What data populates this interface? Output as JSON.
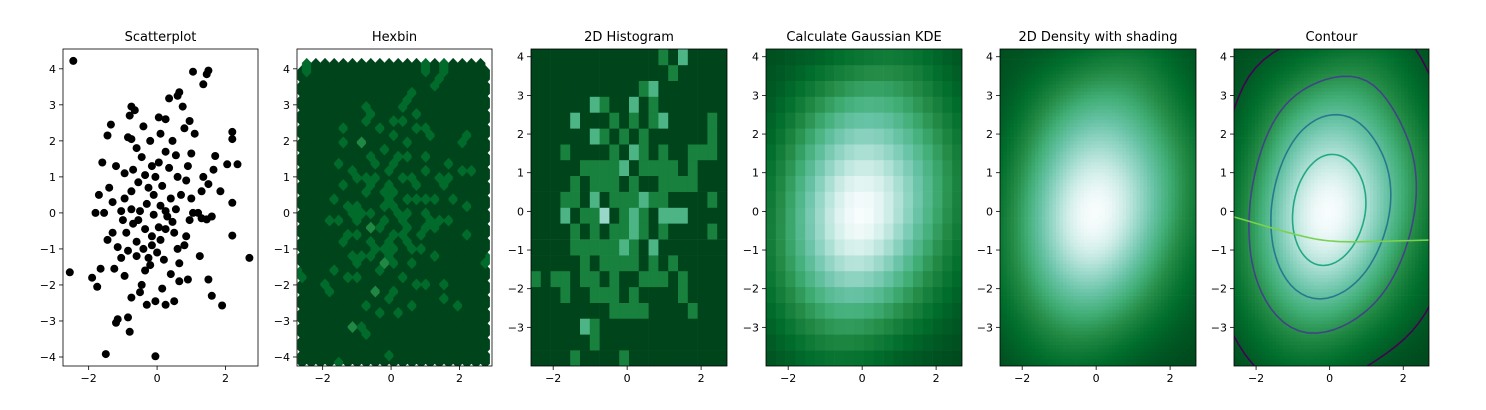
{
  "chart_data": [
    {
      "type": "scatter",
      "title": "Scatterplot",
      "xlim": [
        -2.75,
        2.95
      ],
      "ylim": [
        -4.25,
        4.55
      ],
      "xticks": [
        {
          "v": -2,
          "label": "−2"
        },
        {
          "v": 0,
          "label": "0"
        },
        {
          "v": 2,
          "label": "2"
        }
      ],
      "yticks": [
        {
          "v": -4,
          "label": "−4"
        },
        {
          "v": -3,
          "label": "−3"
        },
        {
          "v": -2,
          "label": "−2"
        },
        {
          "v": -1,
          "label": "−1"
        },
        {
          "v": 0,
          "label": "0"
        },
        {
          "v": 1,
          "label": "1"
        },
        {
          "v": 2,
          "label": "2"
        },
        {
          "v": 3,
          "label": "3"
        },
        {
          "v": 4,
          "label": "4"
        }
      ],
      "marker_color": "#000000",
      "points": [
        [
          -2.45,
          4.22
        ],
        [
          -2.55,
          -1.65
        ],
        [
          -1.9,
          -1.8
        ],
        [
          -1.5,
          -3.92
        ],
        [
          -0.05,
          -3.98
        ],
        [
          2.7,
          -1.25
        ],
        [
          2.2,
          2.25
        ],
        [
          2.2,
          2.05
        ],
        [
          2.35,
          1.35
        ],
        [
          2.2,
          0.28
        ],
        [
          2.2,
          -0.63
        ],
        [
          1.9,
          -2.57
        ],
        [
          1.6,
          -2.3
        ],
        [
          1.5,
          -1.85
        ],
        [
          1.85,
          0.6
        ],
        [
          1.5,
          3.95
        ],
        [
          1.45,
          3.85
        ],
        [
          1.35,
          3.57
        ],
        [
          1.05,
          3.92
        ],
        [
          0.65,
          3.35
        ],
        [
          0.6,
          3.25
        ],
        [
          0.35,
          3.18
        ],
        [
          -0.75,
          2.95
        ],
        [
          -0.65,
          2.85
        ],
        [
          -0.8,
          2.7
        ],
        [
          -1.35,
          2.45
        ],
        [
          -1.45,
          2.15
        ],
        [
          -0.85,
          2.1
        ],
        [
          -0.75,
          2.05
        ],
        [
          0.05,
          2.65
        ],
        [
          0.25,
          2.6
        ],
        [
          1.7,
          1.58
        ],
        [
          1.65,
          1.2
        ],
        [
          2.05,
          1.35
        ],
        [
          1.5,
          0.8
        ],
        [
          1.3,
          0.6
        ],
        [
          1.0,
          0.4
        ],
        [
          1.2,
          0.0
        ],
        [
          1.45,
          -0.18
        ],
        [
          1.3,
          -0.15
        ],
        [
          0.85,
          -0.65
        ],
        [
          0.8,
          -0.9
        ],
        [
          0.6,
          -1.0
        ],
        [
          0.9,
          -1.85
        ],
        [
          0.65,
          -1.9
        ],
        [
          0.5,
          -2.45
        ],
        [
          0.25,
          -2.55
        ],
        [
          -0.05,
          -2.45
        ],
        [
          -0.3,
          -2.55
        ],
        [
          -0.5,
          -2.2
        ],
        [
          -0.75,
          -2.35
        ],
        [
          -0.85,
          -2.9
        ],
        [
          -1.15,
          -2.95
        ],
        [
          -1.2,
          -3.05
        ],
        [
          -0.8,
          -3.3
        ],
        [
          -1.75,
          -2.05
        ],
        [
          -1.65,
          -1.55
        ],
        [
          -1.8,
          0.0
        ],
        [
          -1.7,
          0.5
        ],
        [
          -1.6,
          1.4
        ],
        [
          -1.4,
          0.7
        ],
        [
          -1.3,
          0.3
        ],
        [
          -1.3,
          -0.55
        ],
        [
          -1.45,
          -0.75
        ],
        [
          -1.15,
          -0.95
        ],
        [
          -1.05,
          -1.25
        ],
        [
          -1.25,
          -1.55
        ],
        [
          -0.95,
          -1.75
        ],
        [
          -0.6,
          -1.2
        ],
        [
          -0.35,
          -1.6
        ],
        [
          -0.25,
          -1.25
        ],
        [
          -0.15,
          -0.9
        ],
        [
          0.1,
          -0.75
        ],
        [
          0.25,
          -0.45
        ],
        [
          0.45,
          -0.25
        ],
        [
          0.55,
          0.1
        ],
        [
          0.7,
          0.5
        ],
        [
          0.85,
          0.9
        ],
        [
          0.9,
          1.3
        ],
        [
          1.0,
          1.65
        ],
        [
          1.1,
          2.2
        ],
        [
          0.8,
          2.35
        ],
        [
          0.45,
          2.0
        ],
        [
          0.25,
          1.7
        ],
        [
          0.05,
          1.4
        ],
        [
          -0.15,
          1.3
        ],
        [
          -0.35,
          1.05
        ],
        [
          -0.55,
          0.85
        ],
        [
          -0.75,
          0.6
        ],
        [
          -0.95,
          0.4
        ],
        [
          -0.75,
          0.1
        ],
        [
          -0.55,
          -0.2
        ],
        [
          -0.35,
          -0.45
        ],
        [
          -0.15,
          -0.65
        ],
        [
          0.05,
          -0.4
        ],
        [
          0.25,
          0.05
        ],
        [
          0.4,
          0.4
        ],
        [
          0.15,
          0.75
        ],
        [
          -0.1,
          0.5
        ],
        [
          -0.3,
          0.25
        ],
        [
          -0.5,
          0.05
        ],
        [
          -0.7,
          -0.3
        ],
        [
          -0.9,
          -0.55
        ],
        [
          -0.6,
          -0.8
        ],
        [
          -0.4,
          -1.0
        ],
        [
          -0.2,
          -1.45
        ],
        [
          0.0,
          -1.1
        ],
        [
          0.2,
          -1.3
        ],
        [
          0.4,
          -1.7
        ],
        [
          0.65,
          -1.4
        ],
        [
          0.95,
          -0.2
        ],
        [
          1.6,
          -0.1
        ],
        [
          0.6,
          1.0
        ],
        [
          0.35,
          1.25
        ],
        [
          -0.05,
          1.0
        ],
        [
          -0.45,
          1.55
        ],
        [
          -0.7,
          1.2
        ],
        [
          -0.95,
          1.1
        ],
        [
          -1.2,
          1.3
        ],
        [
          -1.05,
          0.05
        ],
        [
          0.75,
          2.95
        ],
        [
          0.1,
          2.2
        ],
        [
          -0.4,
          2.4
        ],
        [
          -0.2,
          2.0
        ],
        [
          0.55,
          1.6
        ],
        [
          1.35,
          1.0
        ],
        [
          1.05,
          0.0
        ],
        [
          0.5,
          -0.55
        ],
        [
          -0.1,
          -0.05
        ],
        [
          0.1,
          0.2
        ],
        [
          -1.0,
          -0.2
        ],
        [
          -0.85,
          -1.05
        ],
        [
          -0.45,
          -2.0
        ],
        [
          0.15,
          -2.1
        ],
        [
          1.25,
          -1.2
        ],
        [
          -0.25,
          0.7
        ],
        [
          0.3,
          -0.1
        ],
        [
          -1.55,
          0.0
        ],
        [
          0.95,
          2.55
        ],
        [
          -0.6,
          1.8
        ]
      ]
    },
    {
      "type": "heatmap",
      "subtype": "hexbin",
      "title": "Hexbin",
      "xlim": [
        -2.75,
        2.95
      ],
      "ylim": [
        -4.25,
        4.55
      ],
      "xticks": [
        {
          "v": -2,
          "label": "−2"
        },
        {
          "v": 0,
          "label": "0"
        },
        {
          "v": 2,
          "label": "2"
        }
      ],
      "yticks": [
        {
          "v": -4,
          "label": "−4"
        },
        {
          "v": -3,
          "label": "−3"
        },
        {
          "v": -2,
          "label": "−2"
        },
        {
          "v": -1,
          "label": "−1"
        },
        {
          "v": 0,
          "label": "0"
        },
        {
          "v": 1,
          "label": "1"
        },
        {
          "v": 2,
          "label": "2"
        },
        {
          "v": 3,
          "label": "3"
        },
        {
          "v": 4,
          "label": "4"
        }
      ],
      "colormap": "BuGn_r",
      "bins": 20,
      "bin_counts_max": 7
    },
    {
      "type": "heatmap",
      "subtype": "hist2d",
      "title": "2D Histogram",
      "xlim": [
        -2.6,
        2.7
      ],
      "ylim": [
        -4.0,
        4.2
      ],
      "xticks": [
        {
          "v": -2,
          "label": "−2"
        },
        {
          "v": 0,
          "label": "0"
        },
        {
          "v": 2,
          "label": "2"
        }
      ],
      "yticks": [
        {
          "v": -3,
          "label": "−3"
        },
        {
          "v": -2,
          "label": "−2"
        },
        {
          "v": -1,
          "label": "−1"
        },
        {
          "v": 0,
          "label": "0"
        },
        {
          "v": 1,
          "label": "1"
        },
        {
          "v": 2,
          "label": "2"
        },
        {
          "v": 3,
          "label": "3"
        },
        {
          "v": 4,
          "label": "4"
        }
      ],
      "colormap": "BuGn_r",
      "bins": 20,
      "bin_counts_max": 4
    },
    {
      "type": "heatmap",
      "subtype": "kde-grid",
      "title": "Calculate Gaussian KDE",
      "xlim": [
        -2.6,
        2.7
      ],
      "ylim": [
        -4.0,
        4.2
      ],
      "xticks": [
        {
          "v": -2,
          "label": "−2"
        },
        {
          "v": 0,
          "label": "0"
        },
        {
          "v": 2,
          "label": "2"
        }
      ],
      "yticks": [
        {
          "v": -3,
          "label": "−3"
        },
        {
          "v": -2,
          "label": "−2"
        },
        {
          "v": -1,
          "label": "−1"
        },
        {
          "v": 0,
          "label": "0"
        },
        {
          "v": 1,
          "label": "1"
        },
        {
          "v": 2,
          "label": "2"
        },
        {
          "v": 3,
          "label": "3"
        },
        {
          "v": 4,
          "label": "4"
        }
      ],
      "colormap": "BuGn_r",
      "grid_bins": 20,
      "density_peak": [
        0.0,
        0.25
      ]
    },
    {
      "type": "heatmap",
      "subtype": "density-shaded",
      "title": "2D Density with shading",
      "xlim": [
        -2.6,
        2.7
      ],
      "ylim": [
        -4.0,
        4.2
      ],
      "xticks": [
        {
          "v": -2,
          "label": "−2"
        },
        {
          "v": 0,
          "label": "0"
        },
        {
          "v": 2,
          "label": "2"
        }
      ],
      "yticks": [
        {
          "v": -3,
          "label": "−3"
        },
        {
          "v": -2,
          "label": "−2"
        },
        {
          "v": -1,
          "label": "−1"
        },
        {
          "v": 0,
          "label": "0"
        },
        {
          "v": 1,
          "label": "1"
        },
        {
          "v": 2,
          "label": "2"
        },
        {
          "v": 3,
          "label": "3"
        },
        {
          "v": 4,
          "label": "4"
        }
      ],
      "colormap": "BuGn_r",
      "density_peak": [
        0.0,
        0.25
      ]
    },
    {
      "type": "heatmap",
      "subtype": "density-contour",
      "title": "Contour",
      "xlim": [
        -2.6,
        2.7
      ],
      "ylim": [
        -4.0,
        4.2
      ],
      "xticks": [
        {
          "v": -2,
          "label": "−2"
        },
        {
          "v": 0,
          "label": "0"
        },
        {
          "v": 2,
          "label": "2"
        }
      ],
      "yticks": [
        {
          "v": -3,
          "label": "−3"
        },
        {
          "v": -2,
          "label": "−2"
        },
        {
          "v": -1,
          "label": "−1"
        },
        {
          "v": 0,
          "label": "0"
        },
        {
          "v": 1,
          "label": "1"
        },
        {
          "v": 2,
          "label": "2"
        },
        {
          "v": 3,
          "label": "3"
        },
        {
          "v": 4,
          "label": "4"
        }
      ],
      "colormap": "BuGn_r",
      "density_peak": [
        0.0,
        0.25
      ],
      "contour_levels": [
        0.004,
        0.016,
        0.028,
        0.04,
        0.052,
        0.064
      ],
      "contour_colors": [
        "#440154",
        "#414487",
        "#2a788e",
        "#22a884",
        "#7ad151",
        "#fde725"
      ]
    }
  ]
}
